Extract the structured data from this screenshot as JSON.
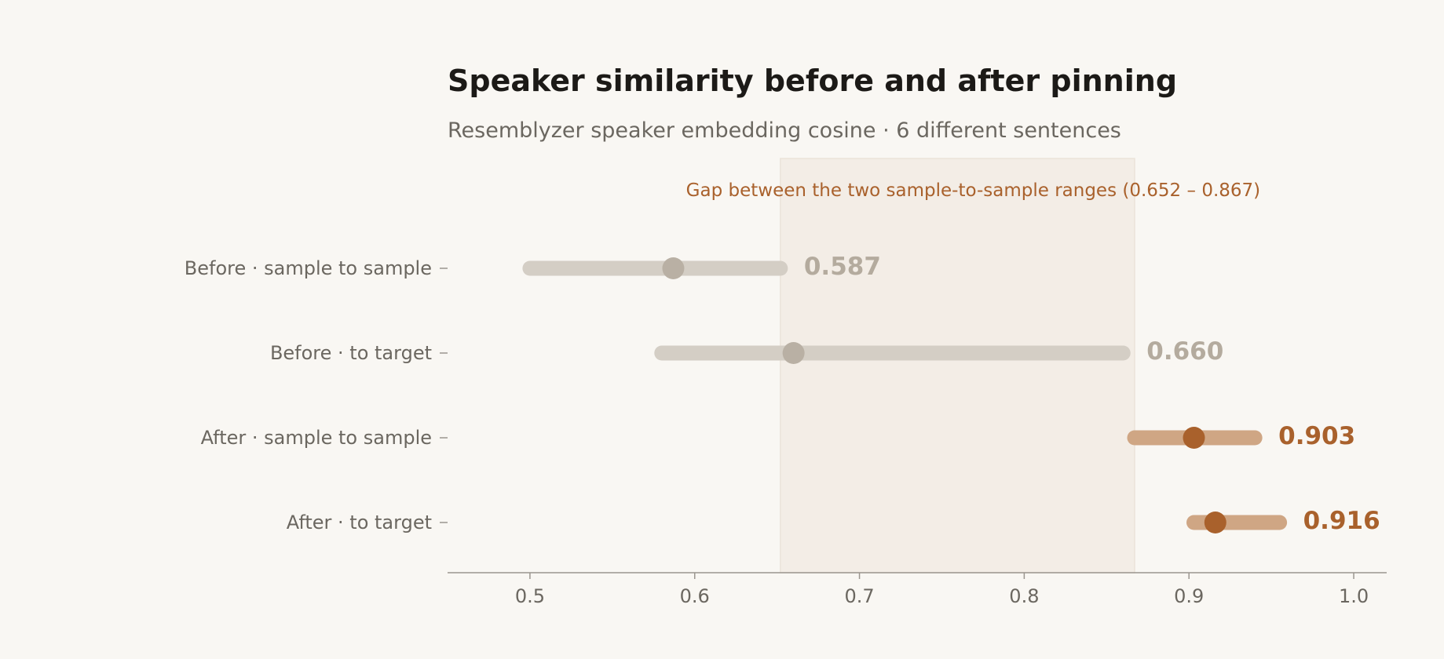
{
  "chart_data": {
    "type": "dot-range",
    "title": "Speaker similarity before and after pinning",
    "subtitle": "Resemblyzer speaker embedding cosine · 6 different sentences",
    "xlim": [
      0.45,
      1.02
    ],
    "x_ticks": [
      0.5,
      0.6,
      0.7,
      0.8,
      0.9,
      1.0
    ],
    "x_tick_labels": [
      "0.5",
      "0.6",
      "0.7",
      "0.8",
      "0.9",
      "1.0"
    ],
    "grid": false,
    "band": {
      "from": 0.652,
      "to": 0.867,
      "annotation": "Gap between the two sample-to-sample ranges (0.652 – 0.867)"
    },
    "rows": [
      {
        "label": "Before · sample to sample",
        "min": 0.5,
        "max": 0.652,
        "value": 0.587,
        "value_label": "0.587",
        "group": "before"
      },
      {
        "label": "Before · to target",
        "min": 0.58,
        "max": 0.86,
        "value": 0.66,
        "value_label": "0.660",
        "group": "before"
      },
      {
        "label": "After · sample to sample",
        "min": 0.867,
        "max": 0.94,
        "value": 0.903,
        "value_label": "0.903",
        "group": "after"
      },
      {
        "label": "After · to target",
        "min": 0.903,
        "max": 0.955,
        "value": 0.916,
        "value_label": "0.916",
        "group": "after"
      }
    ]
  },
  "colors": {
    "background": "#f9f7f3",
    "before_range": "#d4cec5",
    "before_dot": "#b9b0a4",
    "before_value": "#b4ab9e",
    "after_range": "#cfa684",
    "after_dot": "#a9612c",
    "after_value": "#a9612c",
    "band_fill": "#f3ede6",
    "band_stroke": "#ebe3d9",
    "annotation": "#a9612c",
    "axis": "#9b968f"
  }
}
